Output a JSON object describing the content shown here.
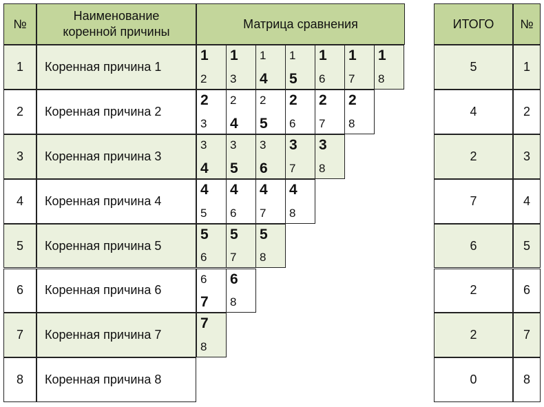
{
  "headers": {
    "num": "№",
    "name_line1": "Наименование",
    "name_line2": "коренной причины",
    "matrix": "Матрица сравнения",
    "total": "ИТОГО",
    "num_right": "№"
  },
  "rows": [
    {
      "num": "1",
      "name": "Коренная причина 1",
      "total": "5",
      "rank": "1"
    },
    {
      "num": "2",
      "name": "Коренная причина 2",
      "total": "4",
      "rank": "2"
    },
    {
      "num": "3",
      "name": "Коренная причина 3",
      "total": "2",
      "rank": "3"
    },
    {
      "num": "4",
      "name": "Коренная причина 4",
      "total": "7",
      "rank": "4"
    },
    {
      "num": "5",
      "name": "Коренная причина 5",
      "total": "6",
      "rank": "5"
    },
    {
      "num": "6",
      "name": "Коренная причина 6",
      "total": "2",
      "rank": "6"
    },
    {
      "num": "7",
      "name": "Коренная причина 7",
      "total": "2",
      "rank": "7"
    },
    {
      "num": "8",
      "name": "Коренная причина 8",
      "total": "0",
      "rank": "8"
    }
  ],
  "matrix": [
    [
      {
        "a": "1",
        "b": "2",
        "w": "a"
      },
      {
        "a": "1",
        "b": "3",
        "w": "a"
      },
      {
        "a": "1",
        "b": "4",
        "w": "b"
      },
      {
        "a": "1",
        "b": "5",
        "w": "b"
      },
      {
        "a": "1",
        "b": "6",
        "w": "a"
      },
      {
        "a": "1",
        "b": "7",
        "w": "a"
      },
      {
        "a": "1",
        "b": "8",
        "w": "a"
      }
    ],
    [
      {
        "a": "2",
        "b": "3",
        "w": "a"
      },
      {
        "a": "2",
        "b": "4",
        "w": "b"
      },
      {
        "a": "2",
        "b": "5",
        "w": "b"
      },
      {
        "a": "2",
        "b": "6",
        "w": "a"
      },
      {
        "a": "2",
        "b": "7",
        "w": "a"
      },
      {
        "a": "2",
        "b": "8",
        "w": "a"
      }
    ],
    [
      {
        "a": "3",
        "b": "4",
        "w": "b"
      },
      {
        "a": "3",
        "b": "5",
        "w": "b"
      },
      {
        "a": "3",
        "b": "6",
        "w": "b"
      },
      {
        "a": "3",
        "b": "7",
        "w": "a"
      },
      {
        "a": "3",
        "b": "8",
        "w": "a"
      }
    ],
    [
      {
        "a": "4",
        "b": "5",
        "w": "a"
      },
      {
        "a": "4",
        "b": "6",
        "w": "a"
      },
      {
        "a": "4",
        "b": "7",
        "w": "a"
      },
      {
        "a": "4",
        "b": "8",
        "w": "a"
      }
    ],
    [
      {
        "a": "5",
        "b": "6",
        "w": "a"
      },
      {
        "a": "5",
        "b": "7",
        "w": "a"
      },
      {
        "a": "5",
        "b": "8",
        "w": "a"
      }
    ],
    [
      {
        "a": "6",
        "b": "7",
        "w": "b"
      },
      {
        "a": "6",
        "b": "8",
        "w": "a"
      }
    ],
    [
      {
        "a": "7",
        "b": "8",
        "w": "a"
      }
    ],
    []
  ]
}
